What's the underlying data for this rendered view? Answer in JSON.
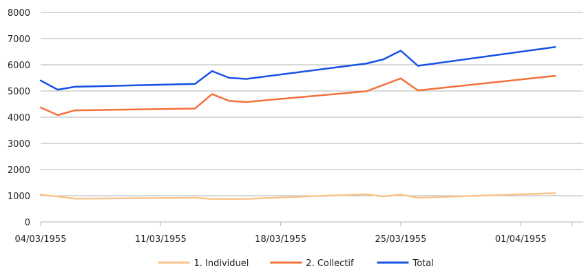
{
  "chart_data": {
    "type": "line",
    "title": "",
    "xlabel": "",
    "ylabel": "",
    "x_type": "date",
    "xlim": [
      "1955-03-04",
      "1955-04-04"
    ],
    "ylim": [
      0,
      8000
    ],
    "y_ticks": [
      0,
      1000,
      2000,
      3000,
      4000,
      5000,
      6000,
      7000,
      8000
    ],
    "x_ticks": [
      {
        "date": "1955-03-04",
        "label": "04/03/1955"
      },
      {
        "date": "1955-03-11",
        "label": "11/03/1955"
      },
      {
        "date": "1955-03-18",
        "label": "18/03/1955"
      },
      {
        "date": "1955-03-25",
        "label": "25/03/1955"
      },
      {
        "date": "1955-04-01",
        "label": "01/04/1955"
      }
    ],
    "grid": "horizontal",
    "legend_position": "bottom",
    "series": [
      {
        "name": "1. Individuel",
        "color": "#fcc48c",
        "points": [
          [
            "1955-03-04",
            1040
          ],
          [
            "1955-03-05",
            970
          ],
          [
            "1955-03-06",
            890
          ],
          [
            "1955-03-13",
            920
          ],
          [
            "1955-03-14",
            880
          ],
          [
            "1955-03-16",
            880
          ],
          [
            "1955-03-23",
            1060
          ],
          [
            "1955-03-24",
            970
          ],
          [
            "1955-03-25",
            1050
          ],
          [
            "1955-03-26",
            920
          ],
          [
            "1955-04-03",
            1100
          ]
        ]
      },
      {
        "name": "2. Collectif",
        "color": "#f4703a",
        "points": [
          [
            "1955-03-04",
            4370
          ],
          [
            "1955-03-05",
            4080
          ],
          [
            "1955-03-06",
            4260
          ],
          [
            "1955-03-13",
            4330
          ],
          [
            "1955-03-14",
            4880
          ],
          [
            "1955-03-15",
            4620
          ],
          [
            "1955-03-16",
            4580
          ],
          [
            "1955-03-23",
            4990
          ],
          [
            "1955-03-25",
            5480
          ],
          [
            "1955-03-26",
            5020
          ],
          [
            "1955-04-03",
            5580
          ]
        ]
      },
      {
        "name": "Total",
        "color": "#1450e6",
        "points": [
          [
            "1955-03-04",
            5400
          ],
          [
            "1955-03-05",
            5050
          ],
          [
            "1955-03-06",
            5160
          ],
          [
            "1955-03-13",
            5270
          ],
          [
            "1955-03-14",
            5760
          ],
          [
            "1955-03-15",
            5500
          ],
          [
            "1955-03-16",
            5460
          ],
          [
            "1955-03-23",
            6050
          ],
          [
            "1955-03-24",
            6210
          ],
          [
            "1955-03-25",
            6540
          ],
          [
            "1955-03-26",
            5960
          ],
          [
            "1955-04-03",
            6680
          ]
        ]
      }
    ]
  }
}
